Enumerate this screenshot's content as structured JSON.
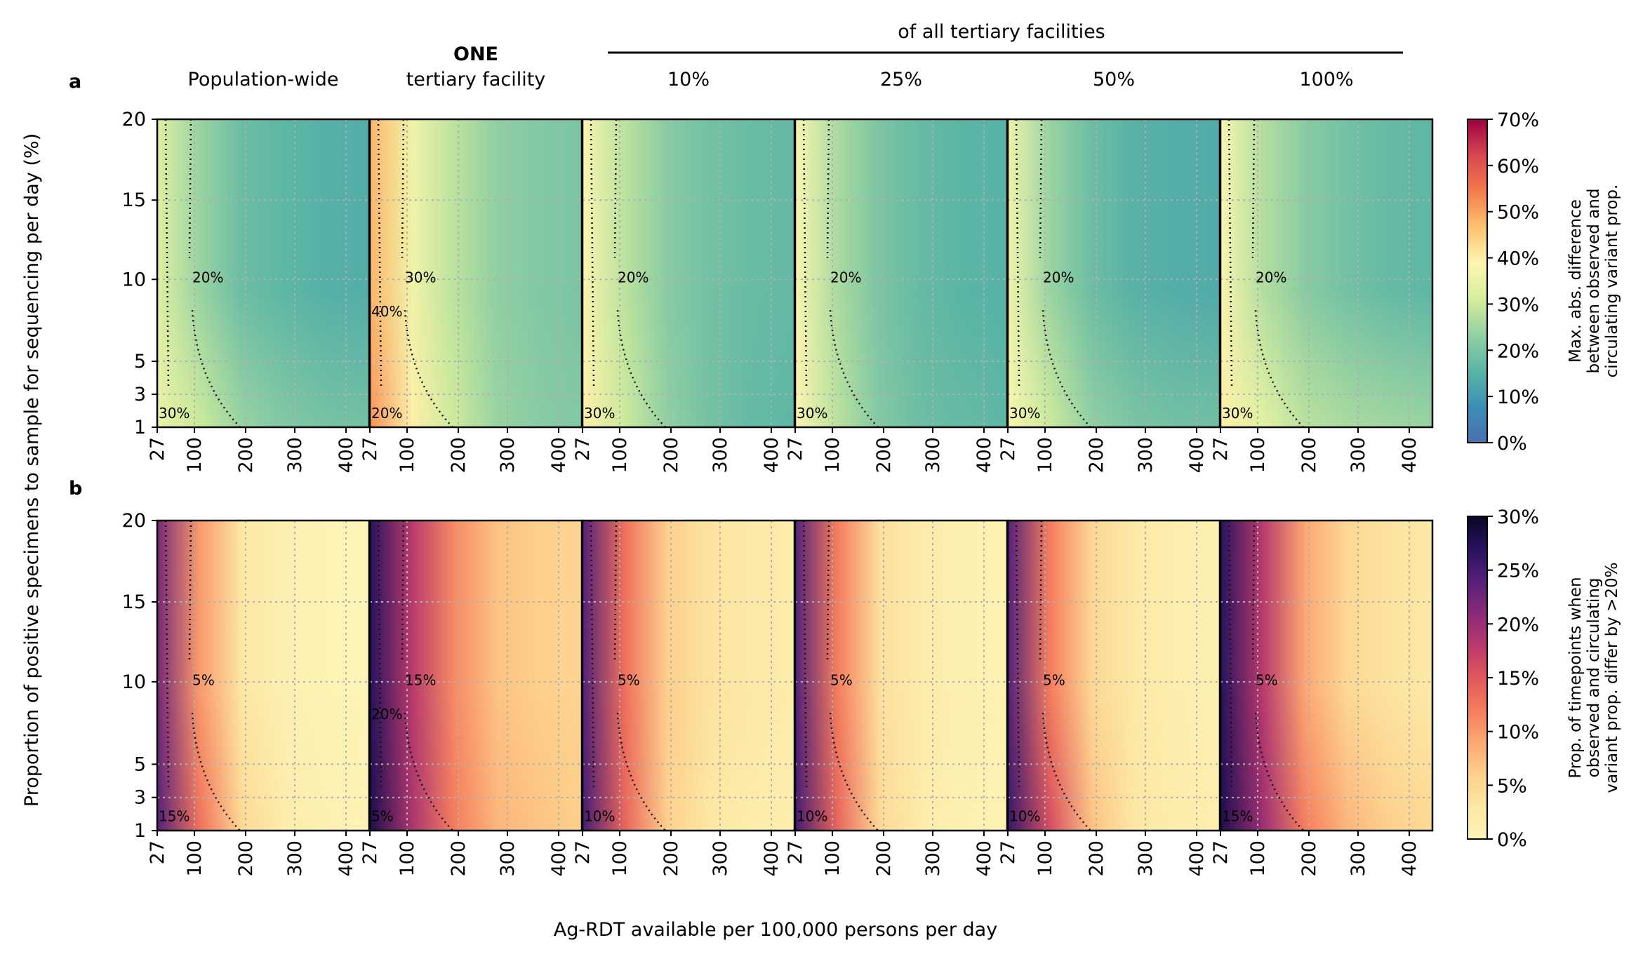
{
  "figure": {
    "group_header": "of all tertiary facilities",
    "panel_labels": [
      "a",
      "b"
    ],
    "y_axis_label": "Proportion of positive specimens to sample for sequencing per day (%)",
    "x_axis_label": "Ag-RDT available per 100,000 persons per day",
    "columns": [
      {
        "title_bold": "",
        "title": "Population-wide"
      },
      {
        "title_bold": "ONE",
        "title": "tertiary facility"
      },
      {
        "title_bold": "",
        "title": "10%"
      },
      {
        "title_bold": "",
        "title": "25%"
      },
      {
        "title_bold": "",
        "title": "50%"
      },
      {
        "title_bold": "",
        "title": "100%"
      }
    ]
  },
  "chart_data": [
    {
      "type": "heatmap",
      "panel": "a",
      "x_ticks": [
        27,
        100,
        200,
        300,
        400
      ],
      "y_ticks": [
        1,
        3,
        5,
        10,
        15,
        20
      ],
      "xlim": [
        27,
        443
      ],
      "ylim": [
        1,
        20
      ],
      "grid": true,
      "colorbar": {
        "label": "Max. abs. difference between observed and circulating variant prop.",
        "label_lines": [
          "Max. abs. difference",
          "between observed and",
          "circulating variant prop."
        ],
        "ticks": [
          "0%",
          "10%",
          "20%",
          "30%",
          "40%",
          "50%",
          "60%",
          "70%"
        ],
        "range": [
          0,
          70
        ],
        "colormap": "Spectral_r",
        "stops": [
          "#4a6fb0",
          "#3b8fb5",
          "#5ab5a5",
          "#93d0a3",
          "#d6ee9b",
          "#fdf6b0",
          "#fdc271",
          "#f57b4c",
          "#d8474f",
          "#9d0142"
        ]
      },
      "subplots": [
        {
          "column": "Population-wide",
          "contour_labels": [
            "20%",
            "30%"
          ],
          "levels_at_y20": [
            33,
            24,
            18,
            16,
            14.5,
            14
          ],
          "levels_at_y1": [
            35,
            30,
            24,
            21,
            19.5,
            19
          ]
        },
        {
          "column": "ONE tertiary facility",
          "contour_labels": [
            "30%",
            "20%",
            "40%"
          ],
          "levels_at_y20": [
            48,
            36,
            28,
            23,
            21,
            20
          ],
          "levels_at_y1": [
            52,
            40,
            30,
            24,
            22,
            21
          ]
        },
        {
          "column": "10%",
          "contour_labels": [
            "20%",
            "30%"
          ],
          "levels_at_y20": [
            38,
            28,
            22,
            19,
            17.5,
            17
          ],
          "levels_at_y1": [
            40,
            30,
            23,
            19,
            17,
            16
          ]
        },
        {
          "column": "25%",
          "contour_labels": [
            "20%",
            "30%"
          ],
          "levels_at_y20": [
            38,
            26,
            20,
            17,
            15.5,
            15
          ],
          "levels_at_y1": [
            38,
            28,
            21,
            18,
            17,
            16
          ]
        },
        {
          "column": "50%",
          "contour_labels": [
            "20%",
            "30%"
          ],
          "levels_at_y20": [
            36,
            24,
            18,
            15,
            14,
            13.5
          ],
          "levels_at_y1": [
            38,
            30,
            23,
            20,
            19,
            18.5
          ]
        },
        {
          "column": "100%",
          "contour_labels": [
            "20%",
            "30%"
          ],
          "levels_at_y20": [
            38,
            27,
            22,
            19,
            17,
            16
          ],
          "levels_at_y1": [
            40,
            34,
            28,
            26,
            25,
            24
          ]
        }
      ]
    },
    {
      "type": "heatmap",
      "panel": "b",
      "x_ticks": [
        27,
        100,
        200,
        300,
        400
      ],
      "y_ticks": [
        1,
        3,
        5,
        10,
        15,
        20
      ],
      "xlim": [
        27,
        443
      ],
      "ylim": [
        1,
        20
      ],
      "grid": true,
      "colorbar": {
        "label": "Prop. of timepoints when observed and circulating variant prop. differ by >20%",
        "label_lines": [
          "Prop. of timepoints when",
          "observed and circulating",
          "variant prop. differ by >20%"
        ],
        "ticks": [
          "0%",
          "5%",
          "10%",
          "15%",
          "20%",
          "25%",
          "30%"
        ],
        "range": [
          0,
          30
        ],
        "colormap": "magma_r",
        "stops": [
          "#fcf5b8",
          "#fde7a4",
          "#fdd08c",
          "#fca872",
          "#f57d5d",
          "#e2575b",
          "#b93a6c",
          "#8a2a78",
          "#55207a",
          "#28125e",
          "#0b0625"
        ]
      },
      "subplots": [
        {
          "column": "Population-wide",
          "contour_labels": [
            "5%",
            "15%"
          ],
          "levels_at_y20": [
            22,
            10,
            3,
            1,
            0.5,
            0.3
          ],
          "levels_at_y1": [
            24,
            13,
            5,
            2,
            1,
            0.5
          ]
        },
        {
          "column": "ONE tertiary facility",
          "contour_labels": [
            "15%",
            "5%",
            "20%"
          ],
          "levels_at_y20": [
            27,
            18,
            11,
            7,
            6,
            5.5
          ],
          "levels_at_y1": [
            28,
            19,
            12,
            8,
            7,
            6
          ]
        },
        {
          "column": "10%",
          "contour_labels": [
            "5%",
            "10%"
          ],
          "levels_at_y20": [
            24,
            13,
            6,
            3.5,
            2.5,
            2
          ],
          "levels_at_y1": [
            25,
            14,
            6,
            3,
            2,
            1.5
          ]
        },
        {
          "column": "25%",
          "contour_labels": [
            "5%",
            "10%"
          ],
          "levels_at_y20": [
            24,
            12,
            4,
            2,
            1,
            0.7
          ],
          "levels_at_y1": [
            25,
            14,
            5,
            2,
            1,
            0.7
          ]
        },
        {
          "column": "50%",
          "contour_labels": [
            "5%",
            "10%"
          ],
          "levels_at_y20": [
            24,
            12,
            5,
            2.5,
            1.5,
            1
          ],
          "levels_at_y1": [
            26,
            16,
            7,
            3,
            2,
            1.5
          ]
        },
        {
          "column": "100%",
          "contour_labels": [
            "5%",
            "15%"
          ],
          "levels_at_y20": [
            27,
            18,
            9,
            5,
            3.5,
            2.5
          ],
          "levels_at_y1": [
            28,
            20,
            12,
            8,
            6,
            5
          ]
        }
      ]
    }
  ]
}
